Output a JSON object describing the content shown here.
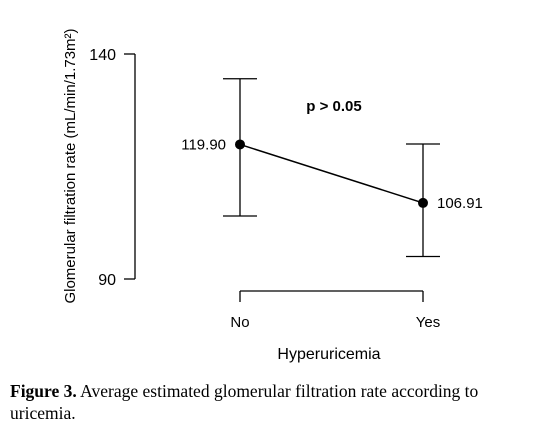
{
  "chart_data": {
    "type": "line",
    "categories": [
      "No",
      "Yes"
    ],
    "series": [
      {
        "values": [
          119.9,
          106.91
        ],
        "value_labels": [
          "119.90",
          "106.91"
        ],
        "error_lower": [
          104,
          95
        ],
        "error_upper": [
          134.5,
          120
        ]
      }
    ],
    "ylim": [
      90,
      140
    ],
    "yticks": [
      "90",
      "140"
    ],
    "ylabel": "Glomerular filtration rate (mL/min/1.73m²)",
    "xlabel": "Hyperuricemia",
    "annotation": "p > 0.05",
    "grid": false
  },
  "caption": {
    "label": "Figure 3.",
    "text": " Average estimated glomerular filtration rate according to uricemia."
  }
}
